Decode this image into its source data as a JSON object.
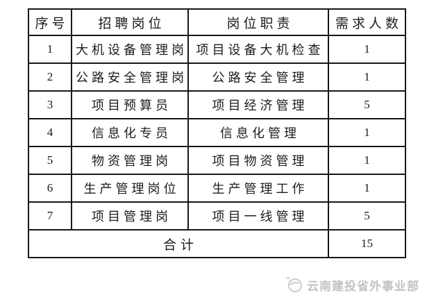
{
  "table": {
    "headers": [
      "序号",
      "招聘岗位",
      "岗位职责",
      "需求人数"
    ],
    "rows": [
      {
        "no": "1",
        "position": "大机设备管理岗",
        "duty": "项目设备大机检查",
        "count": "1"
      },
      {
        "no": "2",
        "position": "公路安全管理岗",
        "duty": "公路安全管理",
        "count": "1"
      },
      {
        "no": "3",
        "position": "项目预算员",
        "duty": "项目经济管理",
        "count": "5"
      },
      {
        "no": "4",
        "position": "信息化专员",
        "duty": "信息化管理",
        "count": "1"
      },
      {
        "no": "5",
        "position": "物资管理岗",
        "duty": "项目物资管理",
        "count": "1"
      },
      {
        "no": "6",
        "position": "生产管理岗位",
        "duty": "生产管理工作",
        "count": "1"
      },
      {
        "no": "7",
        "position": "项目管理岗",
        "duty": "项目一线管理",
        "count": "5"
      }
    ],
    "total_label": "合计",
    "total_value": "15"
  },
  "footer": {
    "brand": "云南建投省外事业部",
    "logo_icon": "circle-swoosh-logo"
  },
  "colors": {
    "border": "#161616",
    "text": "#1c1c1c",
    "watermark": "#c3c3c3",
    "background": "#ffffff"
  }
}
